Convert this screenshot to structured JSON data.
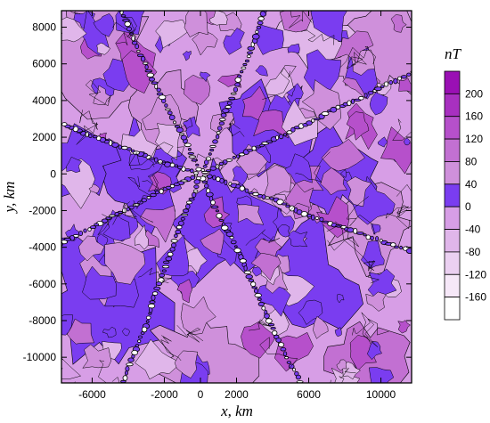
{
  "chart_data": {
    "type": "heatmap",
    "subtype": "filled-contour-map",
    "xlabel": "x, km",
    "ylabel": "y, km",
    "xlim": [
      -7700,
      11700
    ],
    "ylim": [
      -11400,
      8900
    ],
    "x_ticks": [
      -6000,
      -2000,
      0,
      2000,
      6000,
      10000
    ],
    "x_tick_labels": [
      "-6000",
      "-2000",
      "0",
      "2000",
      "6000",
      "10000"
    ],
    "y_ticks": [
      8000,
      6000,
      4000,
      2000,
      0,
      -2000,
      -4000,
      -6000,
      -8000,
      -10000
    ],
    "y_tick_labels": [
      "8000",
      "6000",
      "4000",
      "2000",
      "0",
      "-2000",
      "-4000",
      "-6000",
      "-8000",
      "-10000"
    ],
    "grid": false,
    "colorbar": {
      "title": "nT",
      "placement": "right",
      "levels": [
        240,
        200,
        160,
        120,
        80,
        40,
        0,
        -40,
        -80,
        -120,
        -160,
        -200
      ],
      "labels": [
        "200",
        "160",
        "120",
        "80",
        "40",
        "0",
        "-40",
        "-80",
        "-120",
        "-160"
      ],
      "colors": [
        "#9a10b4",
        "#a830c0",
        "#b650cb",
        "#c270d2",
        "#cf90db",
        "#7a3df0",
        "#d79ee6",
        "#e0b6ea",
        "#ebd0f1",
        "#f6e8f8",
        "#ffffff"
      ]
    },
    "dominant_colors": {
      "blue_zero_band": "#7a3df0",
      "light_violet": "#cf90db",
      "background_violet": "#d79ee6"
    },
    "features": {
      "radial_lineaments": 8
    }
  }
}
